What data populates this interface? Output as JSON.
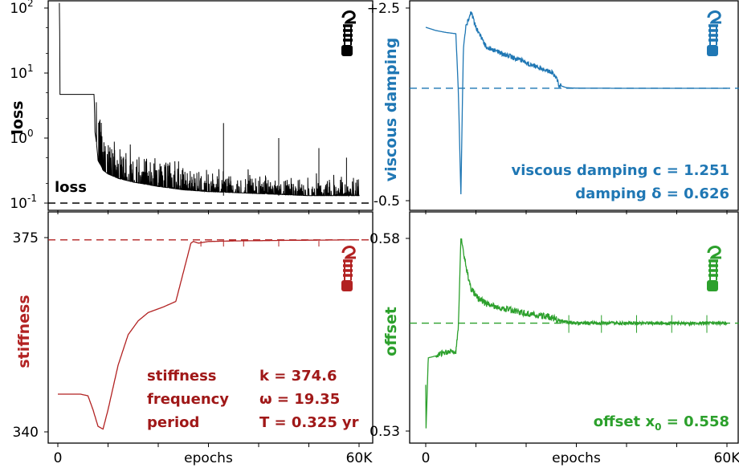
{
  "colors": {
    "loss": "#000000",
    "damping": "#1f77b4",
    "stiffness": "#b22222",
    "stiffness_text": "#a01818",
    "offset": "#2ca02c"
  },
  "icon": "spring-mass-icon",
  "x_axis": {
    "label": "epochs",
    "ticks": [
      "0",
      "60K"
    ],
    "range": [
      0,
      60000
    ]
  },
  "chart_data": [
    {
      "id": "loss",
      "type": "line",
      "scale": "log",
      "ylabel": "loss",
      "ylim": [
        0.1,
        100
      ],
      "yticks": [
        {
          "value": 100,
          "base": "10",
          "exp": "2"
        },
        {
          "value": 10,
          "base": "10",
          "exp": "1"
        },
        {
          "value": 1,
          "base": "10",
          "exp": "0"
        },
        {
          "value": 0.1,
          "base": "10",
          "exp": "-1"
        }
      ],
      "reference_line": 0.1,
      "reference_label": "loss",
      "series": [
        {
          "x": [
            300,
            400,
            500,
            7200,
            7400,
            8000,
            9000,
            10000,
            12000,
            15000,
            20000,
            25000,
            30000,
            40000,
            50000,
            60000
          ],
          "y": [
            120,
            4.7,
            4.7,
            4.7,
            1.2,
            0.45,
            0.32,
            0.28,
            0.24,
            0.21,
            0.18,
            0.16,
            0.15,
            0.14,
            0.13,
            0.13
          ]
        }
      ],
      "spikes": [
        {
          "x": 33000,
          "y": 1.7
        },
        {
          "x": 44000,
          "y": 1.0
        },
        {
          "x": 52000,
          "y": 0.7
        },
        {
          "x": 57500,
          "y": 0.5
        }
      ]
    },
    {
      "id": "damping",
      "type": "line",
      "ylabel": "viscous damping",
      "ylim": [
        -0.5,
        2.5
      ],
      "yticks": [
        {
          "value": 2.5,
          "label": "+2.5"
        },
        {
          "value": -0.5,
          "label": "-0.5"
        }
      ],
      "reference_line": 1.251,
      "series": [
        {
          "x": [
            0,
            2000,
            4000,
            6000,
            6500,
            7000,
            7500,
            8000,
            9000,
            10000,
            12000,
            15000,
            20000,
            25000,
            25800,
            26500,
            28000,
            30000,
            40000,
            50000,
            60000
          ],
          "y": [
            2.2,
            2.15,
            2.12,
            2.1,
            1.2,
            -0.4,
            1.9,
            2.2,
            2.45,
            2.2,
            1.9,
            1.8,
            1.65,
            1.5,
            1.45,
            1.3,
            1.26,
            1.252,
            1.25,
            1.25,
            1.25
          ]
        }
      ],
      "annotations": [
        {
          "name": "viscous damping",
          "symbol": "c",
          "value": "1.251"
        },
        {
          "name": "damping",
          "symbol": "δ",
          "value": "0.626"
        }
      ]
    },
    {
      "id": "stiffness",
      "type": "line",
      "ylabel": "stiffness",
      "ylim": [
        340,
        375
      ],
      "yticks": [
        {
          "value": 375,
          "label": "375"
        },
        {
          "value": 340,
          "label": "340"
        }
      ],
      "reference_line": 374.6,
      "series": [
        {
          "x": [
            0,
            4500,
            6000,
            7000,
            8000,
            9000,
            10000,
            12000,
            14000,
            16000,
            18000,
            21000,
            23500,
            26500,
            27000,
            28000,
            30000,
            35000,
            45000,
            60000
          ],
          "y": [
            346.8,
            346.8,
            346.5,
            344.0,
            341.0,
            340.5,
            344.0,
            352.0,
            357.5,
            360.0,
            361.5,
            362.5,
            363.5,
            374.0,
            374.3,
            374.0,
            374.3,
            374.4,
            374.5,
            374.6
          ]
        }
      ],
      "annotations": [
        {
          "name": "stiffness",
          "symbol": "k",
          "value": "374.6",
          "unit": ""
        },
        {
          "name": "frequency",
          "symbol": "ω",
          "value": "19.35",
          "unit": ""
        },
        {
          "name": "period",
          "symbol": "T",
          "value": "0.325",
          "unit": "yr"
        }
      ]
    },
    {
      "id": "offset",
      "type": "line",
      "ylabel": "offset",
      "ylim": [
        0.53,
        0.58
      ],
      "yticks": [
        {
          "value": 0.58,
          "label": "0.58"
        },
        {
          "value": 0.53,
          "label": "0.53"
        }
      ],
      "reference_line": 0.558,
      "series": [
        {
          "x": [
            0,
            50,
            500,
            2000,
            4000,
            6000,
            6500,
            7000,
            7500,
            8000,
            9000,
            10000,
            12000,
            15000,
            20000,
            25000,
            27000,
            30000,
            40000,
            50000,
            60000
          ],
          "y": [
            0.542,
            0.53,
            0.549,
            0.5495,
            0.5505,
            0.5505,
            0.557,
            0.58,
            0.577,
            0.573,
            0.567,
            0.565,
            0.563,
            0.562,
            0.5605,
            0.5595,
            0.5585,
            0.558,
            0.558,
            0.558,
            0.558
          ]
        }
      ],
      "annotations": [
        {
          "name": "offset",
          "symbol": "x",
          "sub": "0",
          "value": "0.558"
        }
      ]
    }
  ]
}
